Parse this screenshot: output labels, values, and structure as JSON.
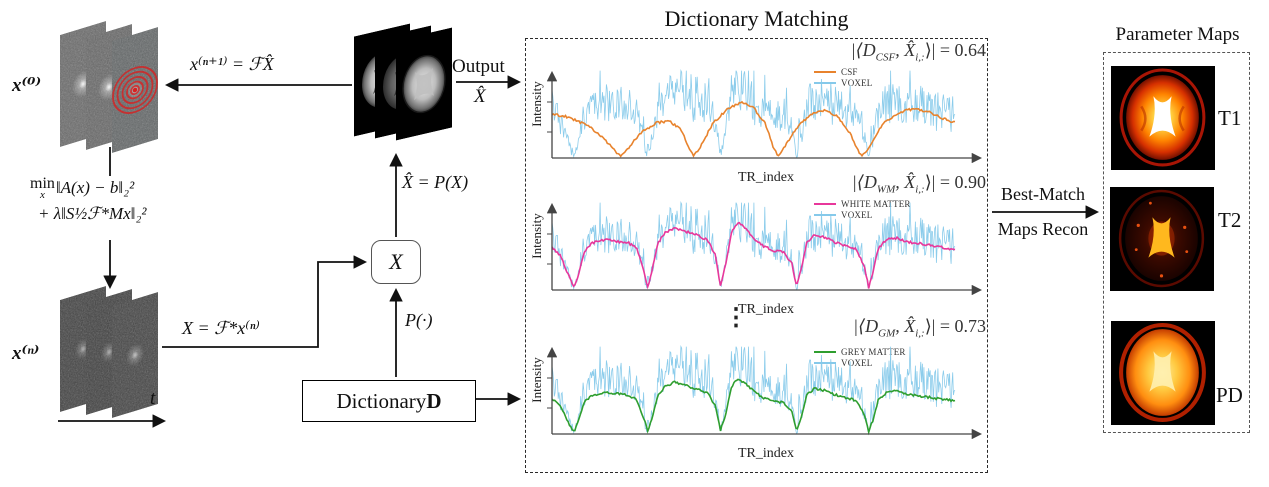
{
  "diagram": {
    "left": {
      "x0_label": "x⁽⁰⁾",
      "xn_label": "x⁽ⁿ⁾",
      "update_eq": "x⁽ⁿ⁺¹⁾ = ℱX̂",
      "min_word": "min",
      "min_sub": "x",
      "min_rest": "‖A(x) − b‖₂²",
      "min_line2": "+ λ‖S½ℱ*Mx‖₂²",
      "xform_eq": "X = ℱ*x⁽ⁿ⁾",
      "t_label": "t"
    },
    "center": {
      "x_box": "X",
      "proj_eq": "X̂ = P(X)",
      "proj_op": "P(·)",
      "dict_prefix": "Dictionary ",
      "dict_d": "D",
      "output_label": "Output",
      "output_sub": "X̂"
    },
    "right": {
      "bestmatch_line1": "Best-Match",
      "bestmatch_line2": "Maps Recon",
      "param_title": "Parameter Maps",
      "maps": [
        {
          "label": "T1"
        },
        {
          "label": "T2"
        },
        {
          "label": "PD"
        }
      ]
    },
    "colors": {
      "arrow": "#111111",
      "spiral": "#d92020",
      "axis": "#444444",
      "map_hot_core": "#ffffff",
      "map_hot_mid": "#ff8a00",
      "map_hot_rim": "#8a1000"
    }
  },
  "chart_data": {
    "type": "line",
    "panel_title": "Dictionary Matching",
    "xlabel": "TR_index",
    "ylabel": "Intensity",
    "x_range": [
      0,
      1
    ],
    "y_range": [
      0,
      1
    ],
    "grid": false,
    "legend_position": "upper right",
    "voxel": {
      "name": "VOXEL",
      "color": "#85c9ea",
      "noise_amp": 0.28,
      "seed": 7,
      "envelope": [
        [
          0,
          0.5
        ],
        [
          0.02,
          0.42
        ],
        [
          0.04,
          0.18
        ],
        [
          0.055,
          0.02
        ],
        [
          0.065,
          0.18
        ],
        [
          0.08,
          0.46
        ],
        [
          0.1,
          0.56
        ],
        [
          0.13,
          0.6
        ],
        [
          0.16,
          0.58
        ],
        [
          0.19,
          0.56
        ],
        [
          0.21,
          0.5
        ],
        [
          0.228,
          0.22
        ],
        [
          0.238,
          0.03
        ],
        [
          0.248,
          0.22
        ],
        [
          0.262,
          0.55
        ],
        [
          0.28,
          0.68
        ],
        [
          0.305,
          0.74
        ],
        [
          0.33,
          0.7
        ],
        [
          0.355,
          0.66
        ],
        [
          0.385,
          0.6
        ],
        [
          0.405,
          0.42
        ],
        [
          0.418,
          0.05
        ],
        [
          0.43,
          0.28
        ],
        [
          0.445,
          0.68
        ],
        [
          0.46,
          0.8
        ],
        [
          0.475,
          0.76
        ],
        [
          0.5,
          0.62
        ],
        [
          0.525,
          0.52
        ],
        [
          0.55,
          0.47
        ],
        [
          0.575,
          0.45
        ],
        [
          0.595,
          0.32
        ],
        [
          0.607,
          0.04
        ],
        [
          0.617,
          0.22
        ],
        [
          0.632,
          0.56
        ],
        [
          0.65,
          0.66
        ],
        [
          0.675,
          0.63
        ],
        [
          0.7,
          0.57
        ],
        [
          0.73,
          0.53
        ],
        [
          0.755,
          0.49
        ],
        [
          0.775,
          0.28
        ],
        [
          0.786,
          0.03
        ],
        [
          0.796,
          0.2
        ],
        [
          0.81,
          0.5
        ],
        [
          0.83,
          0.6
        ],
        [
          0.855,
          0.62
        ],
        [
          0.885,
          0.57
        ],
        [
          0.915,
          0.55
        ],
        [
          0.945,
          0.53
        ],
        [
          0.975,
          0.5
        ],
        [
          1,
          0.47
        ]
      ]
    },
    "plots": [
      {
        "series_label": "CSF",
        "color": "#e8832d",
        "match": {
          "open": "|⟨D",
          "sub": "CSF",
          "mid": ", X̂",
          "sub2": "i,:",
          "close": "⟩| = ",
          "value": "0.64"
        },
        "curve": [
          [
            0,
            0.52
          ],
          [
            0.03,
            0.5
          ],
          [
            0.06,
            0.45
          ],
          [
            0.09,
            0.38
          ],
          [
            0.12,
            0.27
          ],
          [
            0.15,
            0.12
          ],
          [
            0.17,
            0.02
          ],
          [
            0.19,
            0.12
          ],
          [
            0.22,
            0.3
          ],
          [
            0.26,
            0.42
          ],
          [
            0.29,
            0.44
          ],
          [
            0.32,
            0.34
          ],
          [
            0.34,
            0.12
          ],
          [
            0.352,
            0.02
          ],
          [
            0.37,
            0.15
          ],
          [
            0.4,
            0.42
          ],
          [
            0.44,
            0.6
          ],
          [
            0.47,
            0.66
          ],
          [
            0.5,
            0.6
          ],
          [
            0.53,
            0.4
          ],
          [
            0.55,
            0.12
          ],
          [
            0.562,
            0.02
          ],
          [
            0.58,
            0.15
          ],
          [
            0.61,
            0.38
          ],
          [
            0.65,
            0.54
          ],
          [
            0.68,
            0.57
          ],
          [
            0.71,
            0.49
          ],
          [
            0.74,
            0.29
          ],
          [
            0.76,
            0.08
          ],
          [
            0.77,
            0.02
          ],
          [
            0.79,
            0.15
          ],
          [
            0.82,
            0.4
          ],
          [
            0.86,
            0.54
          ],
          [
            0.9,
            0.59
          ],
          [
            0.94,
            0.54
          ],
          [
            0.97,
            0.47
          ],
          [
            1,
            0.42
          ]
        ]
      },
      {
        "series_label": "WHITE MATTER",
        "color": "#e8379b",
        "match": {
          "open": "|⟨D",
          "sub": "WM",
          "mid": ", X̂",
          "sub2": "i,:",
          "close": "⟩| = ",
          "value": "0.90"
        },
        "curve": [
          [
            0,
            0.5
          ],
          [
            0.02,
            0.42
          ],
          [
            0.04,
            0.18
          ],
          [
            0.055,
            0.02
          ],
          [
            0.065,
            0.18
          ],
          [
            0.08,
            0.46
          ],
          [
            0.1,
            0.56
          ],
          [
            0.13,
            0.6
          ],
          [
            0.16,
            0.58
          ],
          [
            0.19,
            0.56
          ],
          [
            0.21,
            0.5
          ],
          [
            0.228,
            0.22
          ],
          [
            0.238,
            0.03
          ],
          [
            0.248,
            0.22
          ],
          [
            0.262,
            0.55
          ],
          [
            0.28,
            0.68
          ],
          [
            0.305,
            0.74
          ],
          [
            0.33,
            0.7
          ],
          [
            0.355,
            0.66
          ],
          [
            0.385,
            0.6
          ],
          [
            0.405,
            0.42
          ],
          [
            0.418,
            0.05
          ],
          [
            0.43,
            0.28
          ],
          [
            0.445,
            0.68
          ],
          [
            0.46,
            0.8
          ],
          [
            0.475,
            0.76
          ],
          [
            0.5,
            0.62
          ],
          [
            0.525,
            0.52
          ],
          [
            0.55,
            0.47
          ],
          [
            0.575,
            0.45
          ],
          [
            0.595,
            0.32
          ],
          [
            0.607,
            0.04
          ],
          [
            0.617,
            0.22
          ],
          [
            0.632,
            0.56
          ],
          [
            0.65,
            0.66
          ],
          [
            0.675,
            0.63
          ],
          [
            0.7,
            0.57
          ],
          [
            0.73,
            0.53
          ],
          [
            0.755,
            0.49
          ],
          [
            0.775,
            0.28
          ],
          [
            0.786,
            0.03
          ],
          [
            0.796,
            0.2
          ],
          [
            0.81,
            0.5
          ],
          [
            0.83,
            0.6
          ],
          [
            0.855,
            0.62
          ],
          [
            0.885,
            0.57
          ],
          [
            0.915,
            0.55
          ],
          [
            0.945,
            0.53
          ],
          [
            0.975,
            0.5
          ],
          [
            1,
            0.47
          ]
        ]
      },
      {
        "series_label": "GREY MATTER",
        "color": "#2f9e2f",
        "match": {
          "open": "|⟨D",
          "sub": "GM",
          "mid": ", X̂",
          "sub2": "i,:",
          "close": "⟩| = ",
          "value": "0.73"
        },
        "curve": [
          [
            0,
            0.42
          ],
          [
            0.02,
            0.34
          ],
          [
            0.04,
            0.14
          ],
          [
            0.055,
            0.02
          ],
          [
            0.065,
            0.15
          ],
          [
            0.08,
            0.38
          ],
          [
            0.1,
            0.46
          ],
          [
            0.13,
            0.5
          ],
          [
            0.16,
            0.48
          ],
          [
            0.19,
            0.46
          ],
          [
            0.21,
            0.41
          ],
          [
            0.228,
            0.18
          ],
          [
            0.238,
            0.03
          ],
          [
            0.248,
            0.18
          ],
          [
            0.262,
            0.45
          ],
          [
            0.28,
            0.56
          ],
          [
            0.305,
            0.62
          ],
          [
            0.33,
            0.58
          ],
          [
            0.355,
            0.54
          ],
          [
            0.385,
            0.49
          ],
          [
            0.405,
            0.34
          ],
          [
            0.418,
            0.04
          ],
          [
            0.43,
            0.22
          ],
          [
            0.445,
            0.56
          ],
          [
            0.46,
            0.66
          ],
          [
            0.475,
            0.62
          ],
          [
            0.5,
            0.51
          ],
          [
            0.525,
            0.43
          ],
          [
            0.55,
            0.39
          ],
          [
            0.575,
            0.37
          ],
          [
            0.595,
            0.26
          ],
          [
            0.607,
            0.03
          ],
          [
            0.617,
            0.18
          ],
          [
            0.632,
            0.46
          ],
          [
            0.65,
            0.54
          ],
          [
            0.675,
            0.52
          ],
          [
            0.7,
            0.47
          ],
          [
            0.73,
            0.43
          ],
          [
            0.755,
            0.4
          ],
          [
            0.775,
            0.23
          ],
          [
            0.786,
            0.03
          ],
          [
            0.796,
            0.16
          ],
          [
            0.81,
            0.41
          ],
          [
            0.83,
            0.49
          ],
          [
            0.855,
            0.51
          ],
          [
            0.885,
            0.47
          ],
          [
            0.915,
            0.45
          ],
          [
            0.945,
            0.43
          ],
          [
            0.975,
            0.41
          ],
          [
            1,
            0.39
          ]
        ]
      }
    ],
    "vdots": "⋮"
  }
}
